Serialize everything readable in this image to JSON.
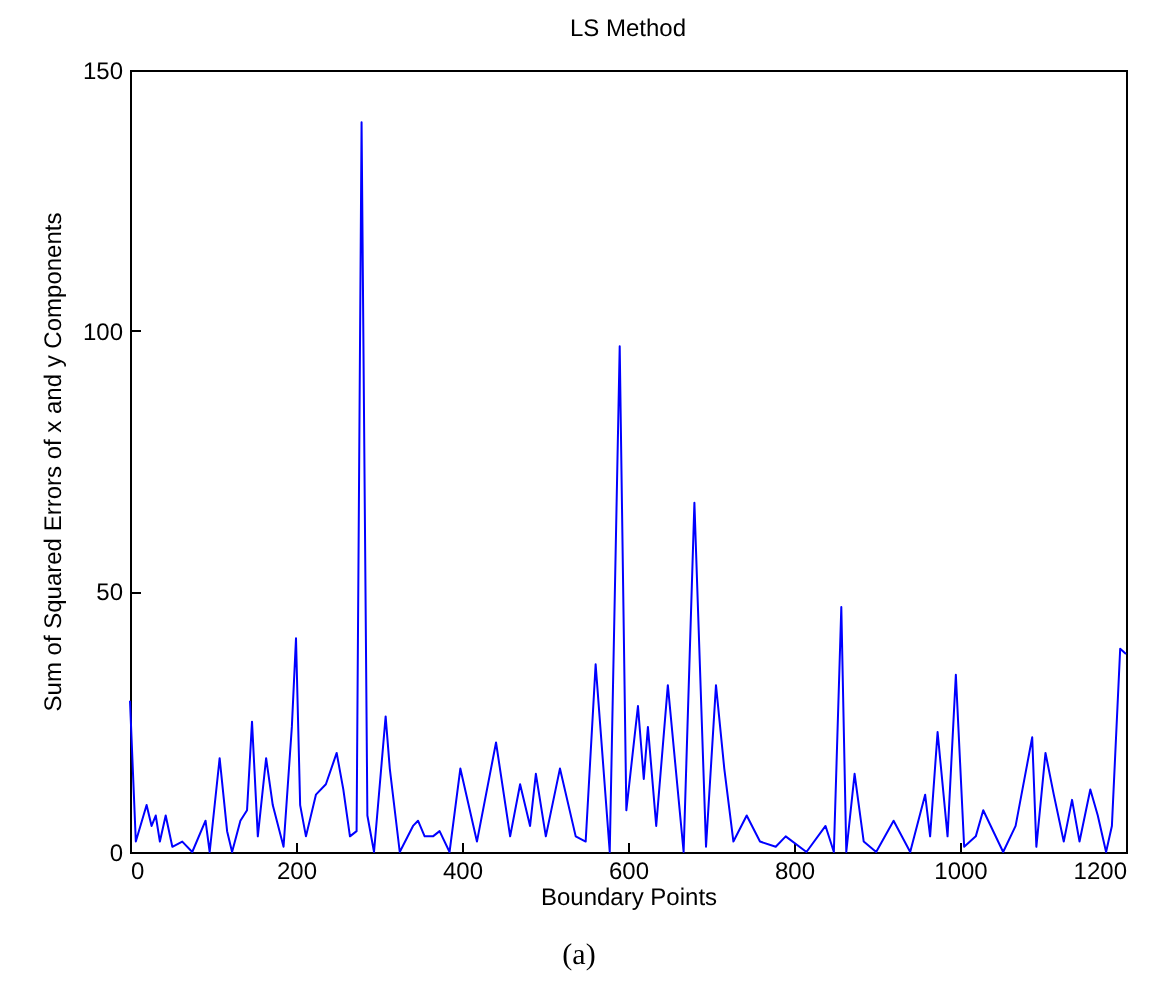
{
  "chart_data": {
    "type": "line",
    "title": "LS Method",
    "xlabel": "Boundary Points",
    "ylabel": "Sum of Squared Errors of x and y Components",
    "annotations": [
      "(a)"
    ],
    "x": [
      0,
      7,
      20,
      26,
      31,
      36,
      43,
      51,
      63,
      75,
      91,
      96,
      108,
      117,
      123,
      133,
      141,
      147,
      154,
      164,
      172,
      185,
      195,
      200,
      205,
      212,
      224,
      236,
      249,
      257,
      265,
      273,
      279,
      286,
      294,
      308,
      313,
      325,
      341,
      347,
      355,
      365,
      373,
      385,
      398,
      418,
      441,
      458,
      470,
      482,
      489,
      501,
      518,
      537,
      549,
      561,
      578,
      590,
      598,
      612,
      619,
      624,
      634,
      648,
      667,
      680,
      694,
      706,
      716,
      727,
      743,
      759,
      778,
      790,
      815,
      838,
      848,
      857,
      863,
      873,
      884,
      899,
      920,
      940,
      958,
      964,
      973,
      985,
      995,
      1005,
      1019,
      1028,
      1052,
      1067,
      1087,
      1092,
      1103,
      1113,
      1125,
      1135,
      1144,
      1157,
      1166,
      1176,
      1183,
      1193,
      1200
    ],
    "series": [
      {
        "color": "#0000ff",
        "values": [
          29,
          2,
          9,
          5,
          7,
          2,
          7,
          1,
          2,
          0,
          6,
          0,
          18,
          4,
          0,
          6,
          8,
          25,
          3,
          18,
          9,
          1,
          24,
          41,
          9,
          3,
          11,
          13,
          19,
          12,
          3,
          4,
          140,
          7,
          0,
          26,
          16,
          0,
          5,
          6,
          3,
          3,
          4,
          0,
          16,
          2,
          21,
          3,
          13,
          5,
          15,
          3,
          16,
          3,
          2,
          36,
          0,
          97,
          8,
          28,
          14,
          24,
          5,
          32,
          0,
          67,
          1,
          32,
          16,
          2,
          7,
          2,
          1,
          3,
          0,
          5,
          0,
          47,
          0,
          15,
          2,
          0,
          6,
          0,
          11,
          3,
          23,
          3,
          34,
          1,
          3,
          8,
          0,
          5,
          22,
          1,
          19,
          11,
          2,
          10,
          2,
          12,
          7,
          0,
          5,
          39,
          38
        ]
      }
    ],
    "xlim": [
      0,
      1200
    ],
    "xticks": [
      0,
      200,
      400,
      600,
      800,
      1000,
      1200
    ],
    "ylim": [
      0,
      150
    ],
    "yticks": [
      0,
      50,
      100,
      150
    ],
    "grid": false,
    "legend": false,
    "marker": "none",
    "line_style": "solid"
  }
}
